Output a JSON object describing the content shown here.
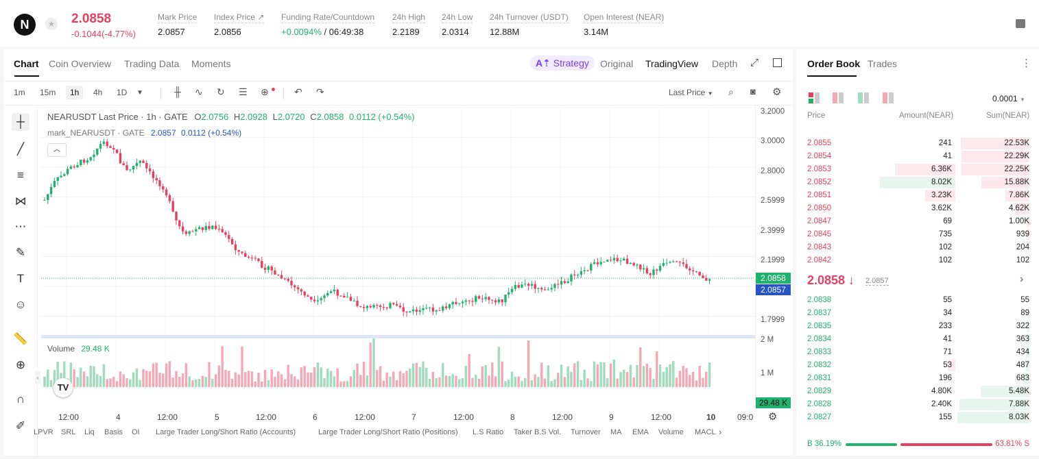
{
  "header": {
    "logo": "N",
    "last_price": "2.0858",
    "change": "-0.1044(-4.77%)",
    "stats": [
      {
        "label": "Mark Price",
        "value": "2.0857"
      },
      {
        "label": "Index Price ↗",
        "value": "2.0856"
      },
      {
        "label": "Funding Rate/Countdown",
        "value_green": "+0.0094%",
        "value_rest": "/ 06:49:38"
      },
      {
        "label": "24h High",
        "value": "2.2189"
      },
      {
        "label": "24h Low",
        "value": "2.0314"
      },
      {
        "label": "24h Turnover (USDT)",
        "value": "12.88M"
      },
      {
        "label": "Open Interest (NEAR)",
        "value": "3.14M"
      }
    ]
  },
  "chart_tabs": [
    "Chart",
    "Coin Overview",
    "Trading Data",
    "Moments"
  ],
  "view_tabs": {
    "strategy": "Strategy",
    "original": "Original",
    "tradingview": "TradingView",
    "depth": "Depth"
  },
  "toolbar": {
    "intervals": [
      "1m",
      "15m",
      "1h",
      "4h",
      "1D"
    ],
    "selected_interval": "1h",
    "price_type": "Last Price"
  },
  "legend": {
    "symbol": "NEARUSDT Last Price · 1h · GATE",
    "o": "2.0756",
    "h": "2.0928",
    "l": "2.0720",
    "c": "2.0858",
    "chg": "0.0112 (+0.54%)",
    "mark": "mark_NEARUSDT · GATE",
    "mark_val": "2.0857",
    "mark_chg": "0.0112 (+0.54%)",
    "volume": "Volume",
    "volume_val": "29.48 K"
  },
  "price_axis": [
    "3.2000",
    "3.0000",
    "2.8000",
    "2.5999",
    "2.3999",
    "2.1999",
    "1.7999"
  ],
  "price_tags": {
    "last": "2.0858",
    "mark": "2.0857"
  },
  "volume_axis": [
    "2 M",
    "1 M"
  ],
  "volume_tag": "29.48 K",
  "time_axis": [
    "12:00",
    "4",
    "12:00",
    "5",
    "12:00",
    "6",
    "12:00",
    "7",
    "12:00",
    "8",
    "12:00",
    "9",
    "12:00",
    "10",
    "09:0"
  ],
  "indicators": [
    "LPVR",
    "SRL",
    "Liq",
    "Basis",
    "OI",
    "Large Trader Long/Short Ratio (Accounts)",
    "Large Trader Long/Short Ratio (Positions)",
    "L.S Ratio",
    "Taker B.S Vol.",
    "Turnover",
    "MA",
    "EMA",
    "Volume",
    "MACL"
  ],
  "orderbook": {
    "tabs": [
      "Order Book",
      "Trades"
    ],
    "precision": "0.0001",
    "headers": [
      "Price",
      "Amount(NEAR)",
      "Sum(NEAR)"
    ],
    "asks": [
      {
        "price": "2.0855",
        "amount": "241",
        "sum": "22.53K",
        "depth": 0.95,
        "amt_depth": 0
      },
      {
        "price": "2.0854",
        "amount": "41",
        "sum": "22.29K",
        "depth": 0.94,
        "amt_depth": 0
      },
      {
        "price": "2.0853",
        "amount": "6.36K",
        "sum": "22.25K",
        "depth": 0.94,
        "amt_depth": 0.8
      },
      {
        "price": "2.0852",
        "amount": "8.02K",
        "sum": "15.88K",
        "depth": 0.67,
        "amt_depth": 1.0,
        "green": true
      },
      {
        "price": "2.0851",
        "amount": "3.23K",
        "sum": "7.86K",
        "depth": 0.33,
        "amt_depth": 0.4
      },
      {
        "price": "2.0850",
        "amount": "3.62K",
        "sum": "4.62K",
        "depth": 0.2,
        "amt_depth": 0
      },
      {
        "price": "2.0847",
        "amount": "69",
        "sum": "1.00K",
        "depth": 0.04,
        "amt_depth": 0
      },
      {
        "price": "2.0845",
        "amount": "735",
        "sum": "939",
        "depth": 0.04,
        "amt_depth": 0
      },
      {
        "price": "2.0843",
        "amount": "102",
        "sum": "204",
        "depth": 0.01,
        "amt_depth": 0
      },
      {
        "price": "2.0842",
        "amount": "102",
        "sum": "102",
        "depth": 0.005,
        "amt_depth": 0
      }
    ],
    "mid_price": "2.0858 ↓",
    "mid_mark": "2.0857",
    "bids": [
      {
        "price": "2.0838",
        "amount": "55",
        "sum": "55",
        "depth": 0.0,
        "amt_depth": 0
      },
      {
        "price": "2.0837",
        "amount": "34",
        "sum": "89",
        "depth": 0.01,
        "amt_depth": 0
      },
      {
        "price": "2.0835",
        "amount": "233",
        "sum": "322",
        "depth": 0.04,
        "amt_depth": 0
      },
      {
        "price": "2.0834",
        "amount": "41",
        "sum": "363",
        "depth": 0.04,
        "amt_depth": 0
      },
      {
        "price": "2.0833",
        "amount": "71",
        "sum": "434",
        "depth": 0.05,
        "amt_depth": 0
      },
      {
        "price": "2.0832",
        "amount": "53",
        "sum": "487",
        "depth": 0.06,
        "amt_depth": 0.1,
        "red": true
      },
      {
        "price": "2.0831",
        "amount": "196",
        "sum": "683",
        "depth": 0.08,
        "amt_depth": 0
      },
      {
        "price": "2.0829",
        "amount": "4.80K",
        "sum": "5.48K",
        "depth": 0.68,
        "amt_depth": 0
      },
      {
        "price": "2.0828",
        "amount": "2.40K",
        "sum": "7.88K",
        "depth": 0.97,
        "amt_depth": 0
      },
      {
        "price": "2.0827",
        "amount": "155",
        "sum": "8.03K",
        "depth": 1.0,
        "amt_depth": 0
      }
    ],
    "buy_ratio": "B 36.19%",
    "sell_ratio": "63.81% S",
    "buy_fraction": 0.3619
  },
  "colors": {
    "up": "#20b26c",
    "down": "#e5405e"
  }
}
